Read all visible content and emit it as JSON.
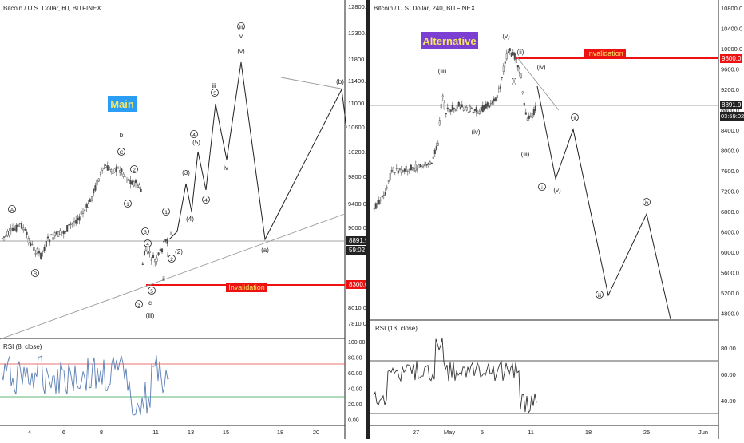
{
  "panels": [
    {
      "id": "left",
      "title": "Bitcoin / U.S. Dollar, 60, BITFINEX",
      "badge": {
        "text": "Main",
        "bg": "#2a9df4",
        "fg": "#f5e663"
      },
      "price_axis": {
        "ticks": [
          "12800.0",
          "12300.0",
          "11800.0",
          "11400.0",
          "11000.0",
          "10600.0",
          "10200.0",
          "9800.0",
          "9400.0",
          "9000.0",
          "8600.0",
          "8300.0",
          "8010.0",
          "7810.0"
        ],
        "current_price": "8891.9",
        "countdown": "59:02",
        "invalidation_price": "8300.0"
      },
      "time_axis": {
        "ticks": [
          "4",
          "6",
          "8",
          "11",
          "13",
          "15",
          "18",
          "20"
        ]
      },
      "invalidation_label": "Invalidation",
      "wave_labels": [
        "A",
        "B",
        "b",
        "C",
        "1",
        "2",
        "3",
        "4",
        "5",
        "c",
        "ii",
        "i",
        "(1)",
        "(2)",
        "(3)",
        "(4)",
        "(5)",
        "iii",
        "iv",
        "v",
        "(i)",
        "(iii)",
        "(iv)",
        "(v)",
        "(a)",
        "(b)"
      ],
      "rsi": {
        "title": "RSI (8, close)",
        "ticks": [
          "100.00",
          "80.00",
          "60.00",
          "40.00",
          "20.00",
          "0.00"
        ],
        "upper_level": 70,
        "lower_level": 30,
        "line_color": "#5b7fb5"
      }
    },
    {
      "id": "right",
      "title": "Bitcoin / U.S. Dollar, 240, BITFINEX",
      "badge": {
        "text": "Alternative",
        "bg": "#7b3fd1",
        "fg": "#f5e663"
      },
      "price_axis": {
        "ticks": [
          "10800.0",
          "10400.0",
          "10000.0",
          "9600.0",
          "9200.0",
          "8800.0",
          "8400.0",
          "8000.0",
          "7600.0",
          "7200.0",
          "6800.0",
          "6400.0",
          "6000.0",
          "5600.0",
          "5200.0",
          "4800.0"
        ],
        "current_price": "8891.9",
        "countdown": "03:59:02",
        "invalidation_price": "9800.0"
      },
      "time_axis": {
        "ticks": [
          "27",
          "May",
          "5",
          "11",
          "18",
          "25",
          "Jun"
        ]
      },
      "invalidation_label": "Invalidation",
      "wave_labels": [
        "(iii)",
        "(iv)",
        "(v)",
        "(ii)",
        "(i)",
        "(iv)",
        "(iii)",
        "(v)",
        "i",
        "ii",
        "iii",
        "iv"
      ],
      "rsi": {
        "title": "RSI (13, close)",
        "ticks": [
          "80.00",
          "60.00",
          "40.00"
        ],
        "upper_level": 70,
        "lower_level": 30,
        "line_color": "#333333"
      }
    }
  ],
  "colors": {
    "bull": "#4a4a4a",
    "line": "#222222",
    "invalidation": "#ee1111",
    "grid": "#888888",
    "rsi_upper": "#e04040",
    "rsi_lower": "#2a9d4a"
  }
}
